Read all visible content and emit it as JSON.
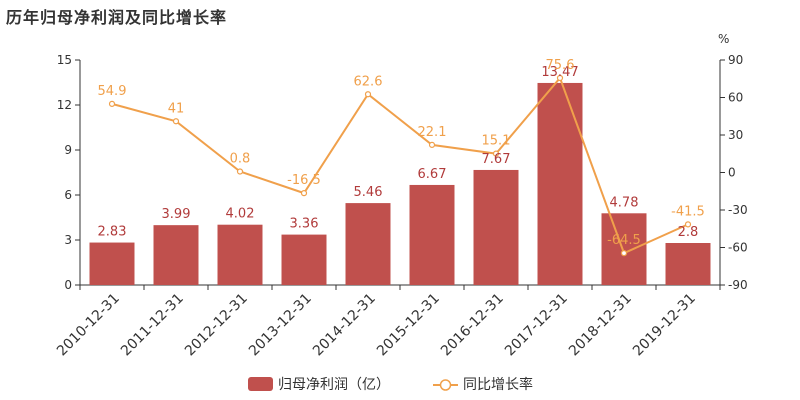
{
  "chart_data": {
    "type": "bar",
    "title": "历年归母净利润及同比增长率",
    "categories": [
      "2010-12-31",
      "2011-12-31",
      "2012-12-31",
      "2013-12-31",
      "2014-12-31",
      "2015-12-31",
      "2016-12-31",
      "2017-12-31",
      "2018-12-31",
      "2019-12-31"
    ],
    "series": [
      {
        "name": "归母净利润（亿）",
        "type": "bar",
        "axis": "left",
        "values": [
          2.83,
          3.99,
          4.02,
          3.36,
          5.46,
          6.67,
          7.67,
          13.47,
          4.78,
          2.8
        ],
        "labels": [
          "2.83",
          "3.99",
          "4.02",
          "3.36",
          "5.46",
          "6.67",
          "7.67",
          "13.47",
          "4.78",
          "2.8"
        ]
      },
      {
        "name": "同比增长率",
        "type": "line",
        "axis": "right",
        "values": [
          54.9,
          41,
          0.8,
          -16.5,
          62.6,
          22.1,
          15.1,
          75.6,
          -64.5,
          -41.5
        ],
        "labels": [
          "54.9",
          "41",
          "0.8",
          "-16.5",
          "62.6",
          "22.1",
          "15.1",
          "75.6",
          "-64.5",
          "-41.5"
        ]
      }
    ],
    "y_left": {
      "min": 0,
      "max": 15,
      "ticks": [
        0,
        3,
        6,
        9,
        12,
        15
      ]
    },
    "y_right": {
      "label": "%",
      "min": -90,
      "max": 90,
      "ticks": [
        -90,
        -60,
        -30,
        0,
        30,
        60,
        90
      ]
    },
    "legend_position": "bottom-center",
    "colors": {
      "bar": "#c0504d",
      "line": "#f0a04b"
    }
  }
}
